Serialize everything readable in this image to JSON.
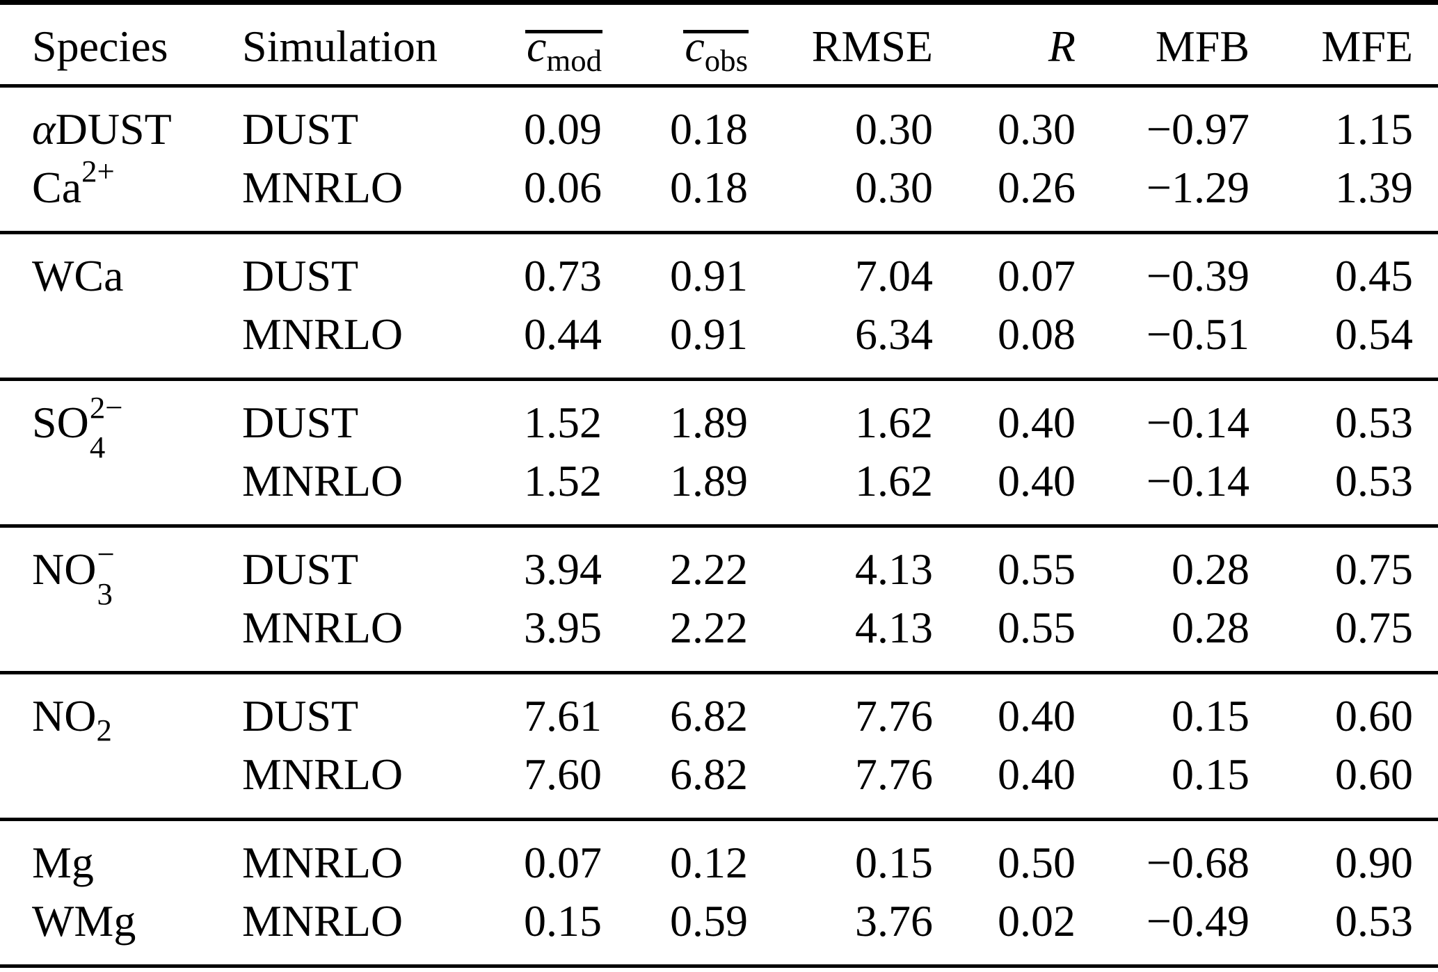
{
  "colors": {
    "text_color": "#000000",
    "background_color": "#ffffff",
    "rule_color": "#000000"
  },
  "table": {
    "columns": [
      {
        "key": "species",
        "segments": [
          {
            "t": "Species"
          }
        ]
      },
      {
        "key": "simulation",
        "segments": [
          {
            "t": "Simulation"
          }
        ]
      },
      {
        "key": "cmod",
        "segments": [
          {
            "overline": [
              {
                "t": "c",
                "i": true
              },
              {
                "sub": "mod"
              }
            ]
          }
        ]
      },
      {
        "key": "cobs",
        "segments": [
          {
            "overline": [
              {
                "t": "c",
                "i": true
              },
              {
                "sub": "obs"
              }
            ]
          }
        ]
      },
      {
        "key": "rmse",
        "segments": [
          {
            "t": "RMSE"
          }
        ]
      },
      {
        "key": "r",
        "segments": [
          {
            "t": "R",
            "i": true
          }
        ]
      },
      {
        "key": "mfb",
        "segments": [
          {
            "t": "MFB"
          }
        ]
      },
      {
        "key": "mfe",
        "segments": [
          {
            "t": "MFE"
          }
        ]
      }
    ],
    "groups": [
      {
        "rows": [
          {
            "species": [
              {
                "t": "α",
                "i": true
              },
              {
                "t": "DUST"
              }
            ],
            "simulation": "DUST",
            "values": [
              "0.09",
              "0.18",
              "0.30",
              "0.30",
              "−0.97",
              "1.15"
            ]
          },
          {
            "species": [
              {
                "t": "Ca"
              },
              {
                "sup": "2+"
              }
            ],
            "simulation": "MNRLO",
            "values": [
              "0.06",
              "0.18",
              "0.30",
              "0.26",
              "−1.29",
              "1.39"
            ]
          }
        ]
      },
      {
        "rows": [
          {
            "species": [
              {
                "t": "WCa"
              }
            ],
            "simulation": "DUST",
            "values": [
              "0.73",
              "0.91",
              "7.04",
              "0.07",
              "−0.39",
              "0.45"
            ]
          },
          {
            "species": [],
            "simulation": "MNRLO",
            "values": [
              "0.44",
              "0.91",
              "6.34",
              "0.08",
              "−0.51",
              "0.54"
            ]
          }
        ]
      },
      {
        "rows": [
          {
            "species": [
              {
                "t": "SO"
              },
              {
                "sup": "2−",
                "sub": "4"
              }
            ],
            "simulation": "DUST",
            "values": [
              "1.52",
              "1.89",
              "1.62",
              "0.40",
              "−0.14",
              "0.53"
            ]
          },
          {
            "species": [],
            "simulation": "MNRLO",
            "values": [
              "1.52",
              "1.89",
              "1.62",
              "0.40",
              "−0.14",
              "0.53"
            ]
          }
        ]
      },
      {
        "rows": [
          {
            "species": [
              {
                "t": "NO"
              },
              {
                "sup": "−",
                "sub": "3"
              }
            ],
            "simulation": "DUST",
            "values": [
              "3.94",
              "2.22",
              "4.13",
              "0.55",
              "0.28",
              "0.75"
            ]
          },
          {
            "species": [],
            "simulation": "MNRLO",
            "values": [
              "3.95",
              "2.22",
              "4.13",
              "0.55",
              "0.28",
              "0.75"
            ]
          }
        ]
      },
      {
        "rows": [
          {
            "species": [
              {
                "t": "NO"
              },
              {
                "sub": "2"
              }
            ],
            "simulation": "DUST",
            "values": [
              "7.61",
              "6.82",
              "7.76",
              "0.40",
              "0.15",
              "0.60"
            ]
          },
          {
            "species": [],
            "simulation": "MNRLO",
            "values": [
              "7.60",
              "6.82",
              "7.76",
              "0.40",
              "0.15",
              "0.60"
            ]
          }
        ]
      },
      {
        "rows": [
          {
            "species": [
              {
                "t": "Mg"
              }
            ],
            "simulation": "MNRLO",
            "values": [
              "0.07",
              "0.12",
              "0.15",
              "0.50",
              "−0.68",
              "0.90"
            ]
          },
          {
            "species": [
              {
                "t": "WMg"
              }
            ],
            "simulation": "MNRLO",
            "values": [
              "0.15",
              "0.59",
              "3.76",
              "0.02",
              "−0.49",
              "0.53"
            ]
          }
        ]
      }
    ]
  }
}
